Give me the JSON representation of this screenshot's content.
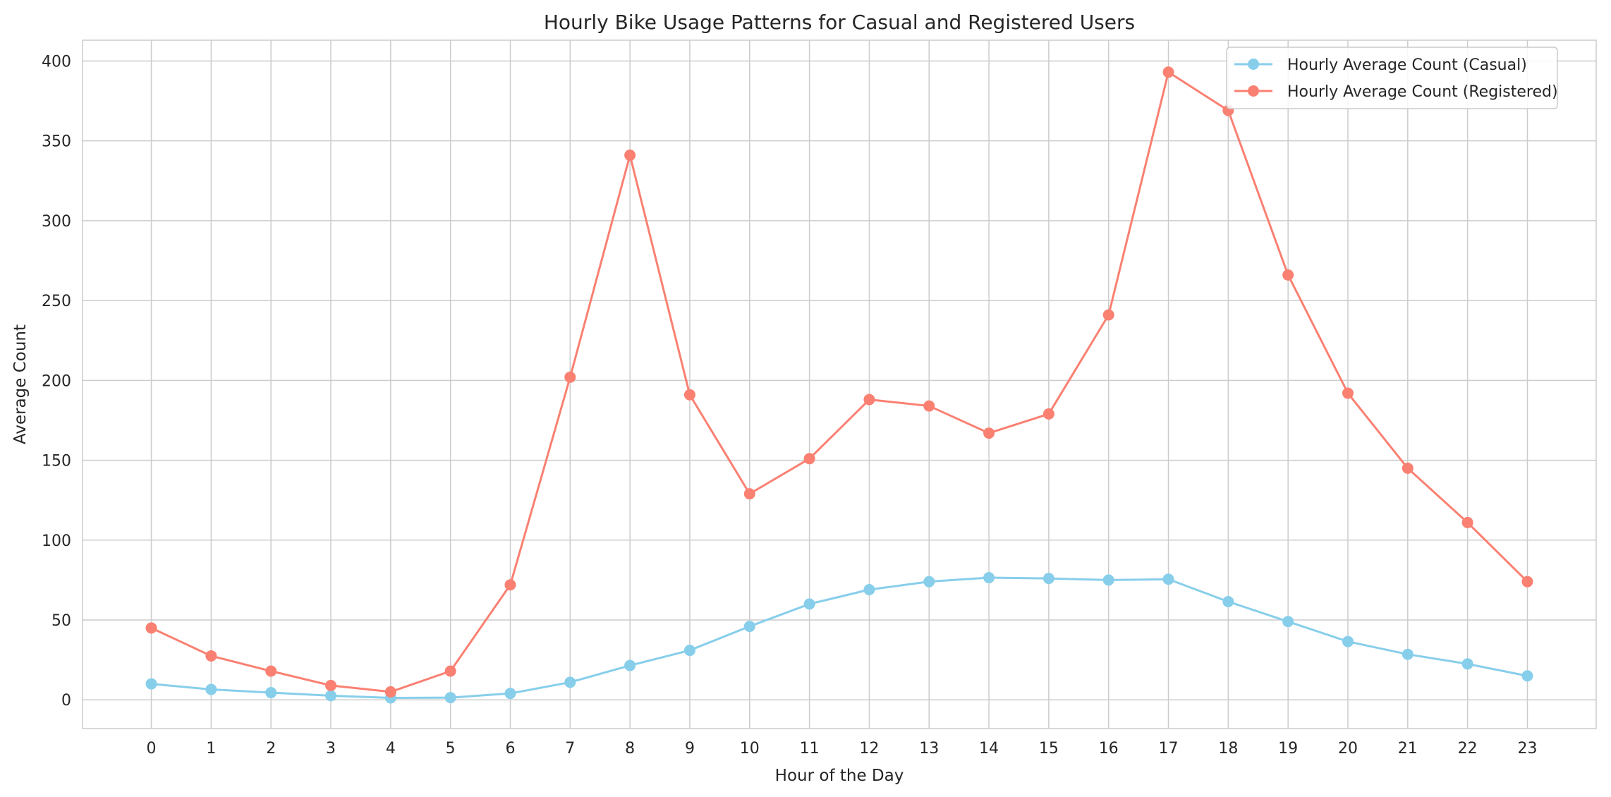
{
  "chart_data": {
    "type": "line",
    "title": "Hourly Bike Usage Patterns for Casual and Registered Users",
    "xlabel": "Hour of the Day",
    "ylabel": "Average Count",
    "categories": [
      "0",
      "1",
      "2",
      "3",
      "4",
      "5",
      "6",
      "7",
      "8",
      "9",
      "10",
      "11",
      "12",
      "13",
      "14",
      "15",
      "16",
      "17",
      "18",
      "19",
      "20",
      "21",
      "22",
      "23"
    ],
    "x": [
      0,
      1,
      2,
      3,
      4,
      5,
      6,
      7,
      8,
      9,
      10,
      11,
      12,
      13,
      14,
      15,
      16,
      17,
      18,
      19,
      20,
      21,
      22,
      23
    ],
    "xlim": [
      -1.15,
      24.15
    ],
    "ylim": [
      -18,
      413
    ],
    "yticks": [
      0,
      50,
      100,
      150,
      200,
      250,
      300,
      350,
      400
    ],
    "grid": true,
    "legend_position": "top-right",
    "series": [
      {
        "name": "Hourly Average Count (Casual)",
        "color": "#87ceeb",
        "marker": "circle",
        "values": [
          10,
          6.5,
          4.5,
          2.6,
          1.2,
          1.4,
          4,
          11,
          21.5,
          31,
          46,
          60,
          69,
          74,
          76.5,
          76,
          75,
          75.5,
          61.5,
          49,
          36.5,
          28.5,
          22.5,
          15
        ]
      },
      {
        "name": "Hourly Average Count (Registered)",
        "color": "#fa8072",
        "marker": "circle",
        "values": [
          45,
          27.5,
          18,
          9,
          5,
          18,
          72,
          202,
          341,
          191,
          129,
          151,
          188,
          184,
          167,
          179,
          241,
          393,
          369,
          266,
          192,
          145,
          111,
          74
        ]
      }
    ]
  }
}
